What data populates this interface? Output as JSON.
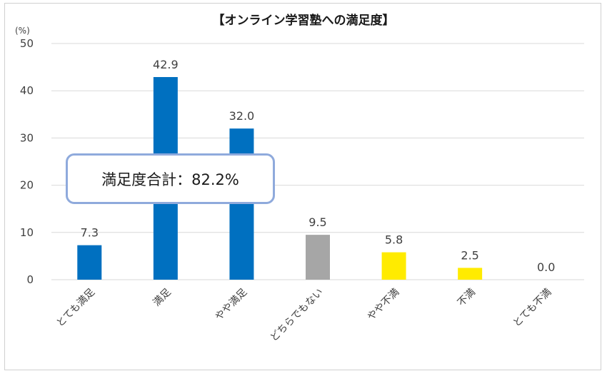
{
  "chart_data": {
    "type": "bar",
    "title": "【オンライン学習塾への満足度】",
    "unit_label": "(%)",
    "categories": [
      "とても満足",
      "満足",
      "やや満足",
      "どちらでもない",
      "やや不満",
      "不満",
      "とても不満"
    ],
    "values": [
      7.3,
      42.9,
      32.0,
      9.5,
      5.8,
      2.5,
      0.0
    ],
    "value_labels": [
      "7.3",
      "42.9",
      "32.0",
      "9.5",
      "5.8",
      "2.5",
      "0.0"
    ],
    "bar_colors": [
      "#0070c0",
      "#0070c0",
      "#0070c0",
      "#a6a6a6",
      "#ffeb00",
      "#ffeb00",
      "#ffeb00"
    ],
    "ylim": [
      0,
      50
    ],
    "yticks": [
      0,
      10,
      20,
      30,
      40,
      50
    ],
    "grid": true,
    "annotation": "満足度合計：82.2%"
  }
}
